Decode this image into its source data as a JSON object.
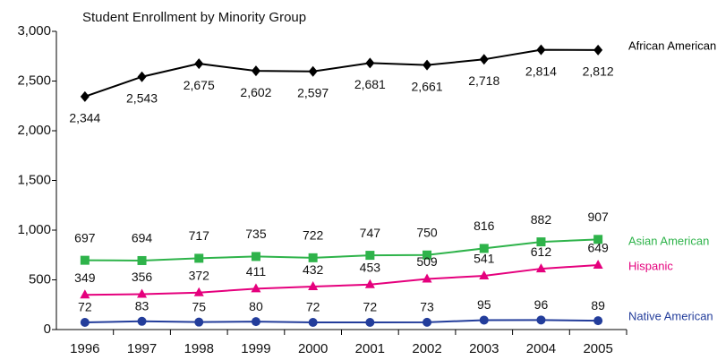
{
  "chart_data": {
    "type": "line",
    "title": "Student Enrollment by Minority Group",
    "categories": [
      "1996",
      "1997",
      "1998",
      "1999",
      "2000",
      "2001",
      "2002",
      "2003",
      "2004",
      "2005"
    ],
    "ylim": [
      0,
      3000
    ],
    "yticks": [
      0,
      500,
      {
        "value": 1000,
        "label": "1,000"
      },
      {
        "value": 1500,
        "label": "1,500"
      },
      {
        "value": 2000,
        "label": "2,000"
      },
      {
        "value": 2500,
        "label": "2,500"
      },
      {
        "value": 3000,
        "label": "3,000"
      }
    ],
    "grid": false,
    "series": [
      {
        "name": "African American",
        "color": "#000000",
        "marker": "diamond",
        "values": [
          2344,
          2543,
          2675,
          2602,
          2597,
          2681,
          2661,
          2718,
          2814,
          2812
        ],
        "value_labels": [
          "2,344",
          "2,543",
          "2,675",
          "2,602",
          "2,597",
          "2,681",
          "2,661",
          "2,718",
          "2,814",
          "2,812"
        ]
      },
      {
        "name": "Asian American",
        "color": "#2eb34a",
        "marker": "square",
        "values": [
          697,
          694,
          717,
          735,
          722,
          747,
          750,
          816,
          882,
          907
        ]
      },
      {
        "name": "Hispanic",
        "color": "#e5007d",
        "marker": "triangle",
        "values": [
          349,
          356,
          372,
          411,
          432,
          453,
          509,
          541,
          612,
          649
        ]
      },
      {
        "name": "Native American",
        "color": "#233d9b",
        "marker": "circle",
        "values": [
          72,
          83,
          75,
          80,
          72,
          72,
          73,
          95,
          96,
          89
        ]
      }
    ]
  }
}
